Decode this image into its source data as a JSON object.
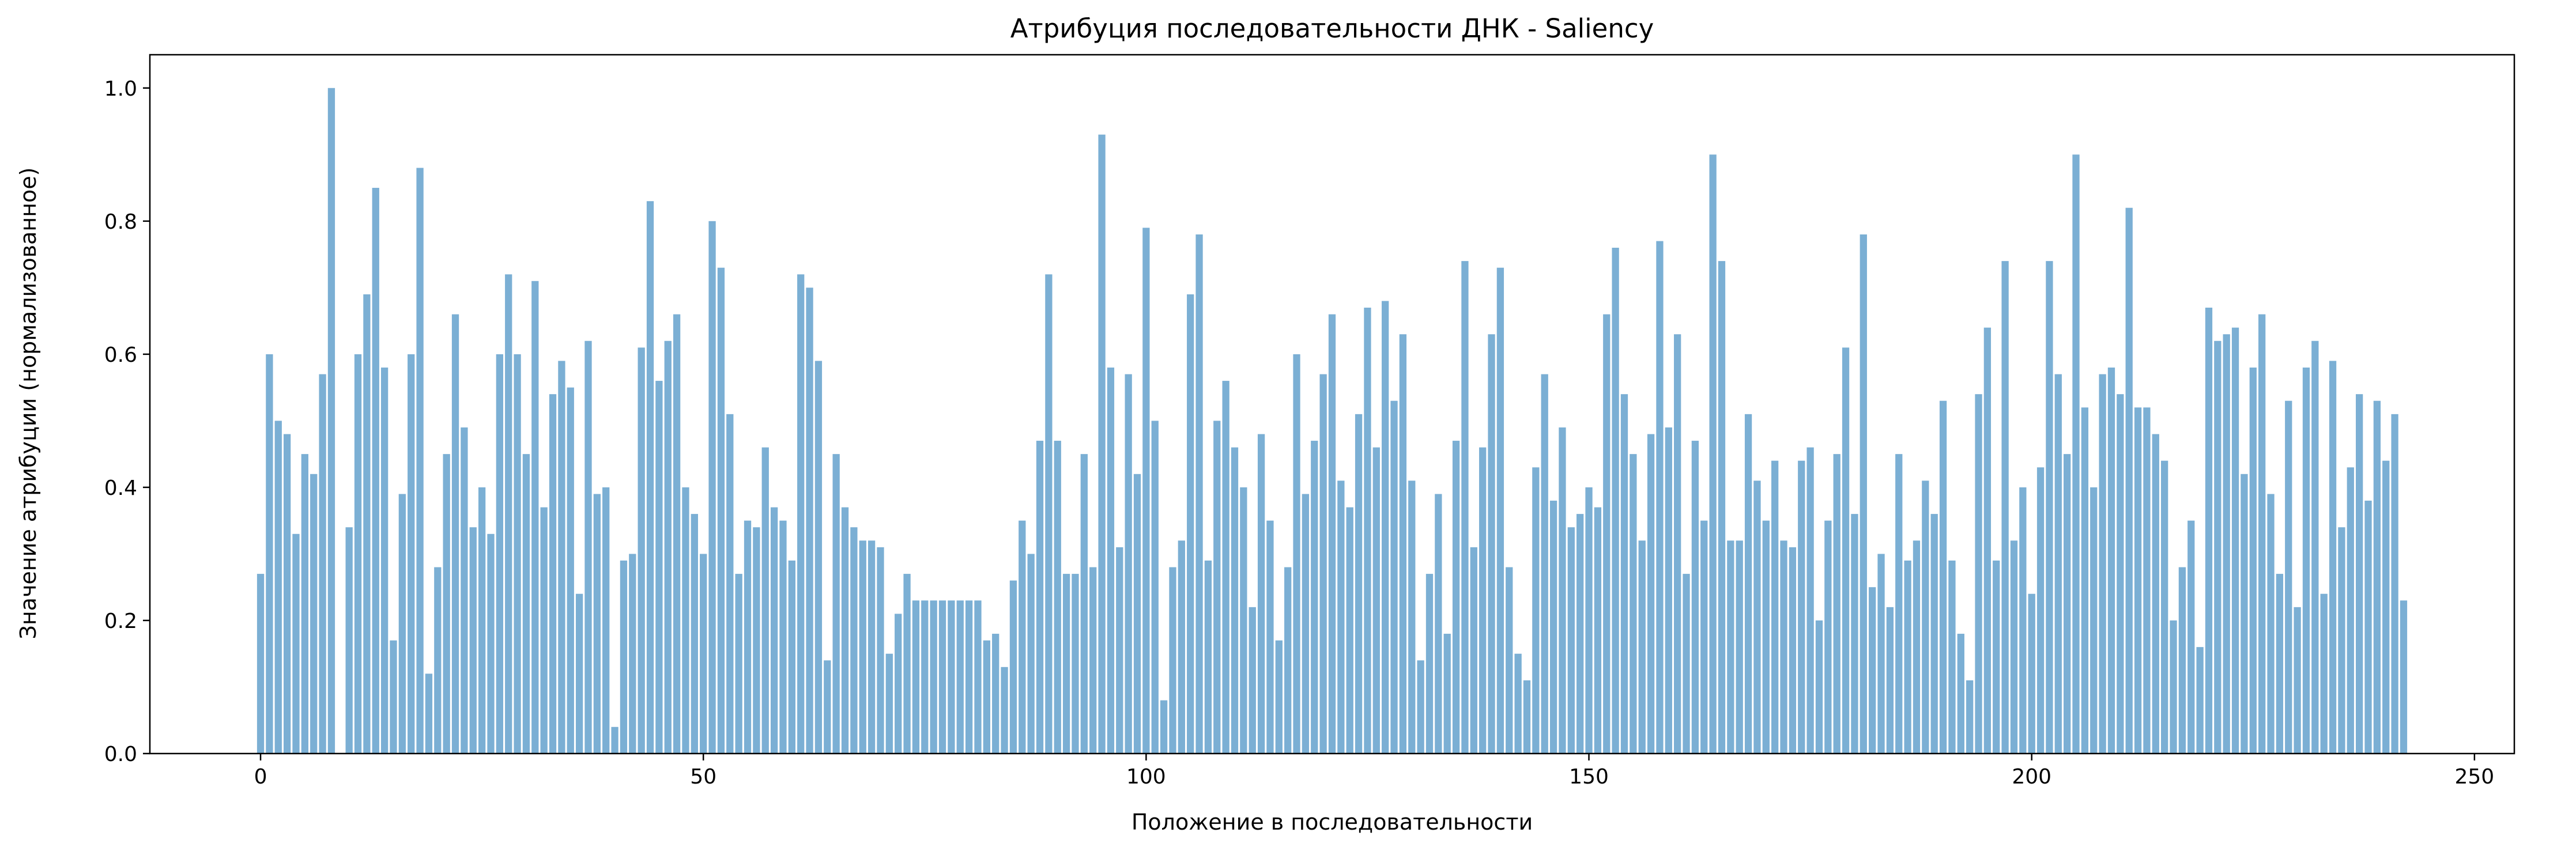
{
  "chart_data": {
    "type": "bar",
    "title": "Атрибуция последовательности ДНК - Saliency",
    "xlabel": "Положение в последовательности",
    "ylabel": "Значение атрибуции (нормализованное)",
    "xlim": [
      -12.5,
      254.5
    ],
    "ylim": [
      0,
      1.05
    ],
    "xticks": [
      0,
      50,
      100,
      150,
      200,
      250
    ],
    "yticks": [
      "0.0",
      "0.2",
      "0.4",
      "0.6",
      "0.8",
      "1.0"
    ],
    "grid": false,
    "bar_color": "#7bafd4",
    "x_start": 0,
    "values": [
      0.27,
      0.6,
      0.5,
      0.48,
      0.33,
      0.45,
      0.42,
      0.57,
      1.0,
      0.0,
      0.34,
      0.6,
      0.69,
      0.85,
      0.58,
      0.17,
      0.39,
      0.6,
      0.88,
      0.12,
      0.28,
      0.45,
      0.66,
      0.49,
      0.34,
      0.4,
      0.33,
      0.6,
      0.72,
      0.6,
      0.45,
      0.71,
      0.37,
      0.54,
      0.59,
      0.55,
      0.24,
      0.62,
      0.39,
      0.4,
      0.04,
      0.29,
      0.3,
      0.61,
      0.83,
      0.56,
      0.62,
      0.66,
      0.4,
      0.36,
      0.3,
      0.8,
      0.73,
      0.51,
      0.27,
      0.35,
      0.34,
      0.46,
      0.37,
      0.35,
      0.29,
      0.72,
      0.7,
      0.59,
      0.14,
      0.45,
      0.37,
      0.34,
      0.32,
      0.32,
      0.31,
      0.15,
      0.21,
      0.27,
      0.23,
      0.23,
      0.23,
      0.23,
      0.23,
      0.23,
      0.23,
      0.23,
      0.17,
      0.18,
      0.13,
      0.26,
      0.35,
      0.3,
      0.47,
      0.72,
      0.47,
      0.27,
      0.27,
      0.45,
      0.28,
      0.93,
      0.58,
      0.31,
      0.57,
      0.42,
      0.79,
      0.5,
      0.08,
      0.28,
      0.32,
      0.69,
      0.78,
      0.29,
      0.5,
      0.56,
      0.46,
      0.4,
      0.22,
      0.48,
      0.35,
      0.17,
      0.28,
      0.6,
      0.39,
      0.47,
      0.57,
      0.66,
      0.41,
      0.37,
      0.51,
      0.67,
      0.46,
      0.68,
      0.53,
      0.63,
      0.41,
      0.14,
      0.27,
      0.39,
      0.18,
      0.47,
      0.74,
      0.31,
      0.46,
      0.63,
      0.73,
      0.28,
      0.15,
      0.11,
      0.43,
      0.57,
      0.38,
      0.49,
      0.34,
      0.36,
      0.4,
      0.37,
      0.66,
      0.76,
      0.54,
      0.45,
      0.32,
      0.48,
      0.77,
      0.49,
      0.63,
      0.27,
      0.47,
      0.35,
      0.9,
      0.74,
      0.32,
      0.32,
      0.51,
      0.41,
      0.35,
      0.44,
      0.32,
      0.31,
      0.44,
      0.46,
      0.2,
      0.35,
      0.45,
      0.61,
      0.36,
      0.78,
      0.25,
      0.3,
      0.22,
      0.45,
      0.29,
      0.32,
      0.41,
      0.36,
      0.53,
      0.29,
      0.18,
      0.11,
      0.54,
      0.64,
      0.29,
      0.74,
      0.32,
      0.4,
      0.24,
      0.43,
      0.74,
      0.57,
      0.45,
      0.9,
      0.52,
      0.4,
      0.57,
      0.58,
      0.54,
      0.82,
      0.52,
      0.52,
      0.48,
      0.44,
      0.2,
      0.28,
      0.35,
      0.16,
      0.67,
      0.62,
      0.63,
      0.64,
      0.42,
      0.58,
      0.66,
      0.39,
      0.27,
      0.53,
      0.22,
      0.58,
      0.62,
      0.24,
      0.59,
      0.34,
      0.43,
      0.54,
      0.38,
      0.53,
      0.44,
      0.51,
      0.23
    ]
  }
}
